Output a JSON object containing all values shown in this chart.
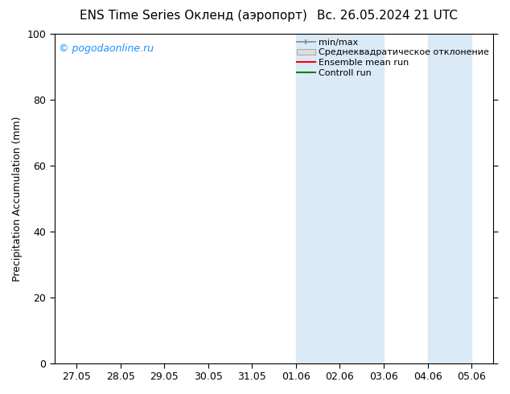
{
  "title_left": "ENS Time Series Окленд (аэропорт)",
  "title_right": "Вс. 26.05.2024 21 UTC",
  "ylabel": "Precipitation Accumulation (mm)",
  "watermark": "© pogodaonline.ru",
  "watermark_color": "#1E90FF",
  "ylim": [
    0,
    100
  ],
  "yticks": [
    0,
    20,
    40,
    60,
    80,
    100
  ],
  "xtick_labels": [
    "27.05",
    "28.05",
    "29.05",
    "30.05",
    "31.05",
    "01.06",
    "02.06",
    "03.06",
    "04.06",
    "05.06"
  ],
  "background_color": "#ffffff",
  "shaded_regions": [
    {
      "x_start_label": "01.06",
      "x_end_label": "02.06"
    },
    {
      "x_start_label": "02.06",
      "x_end_label": "03.06"
    },
    {
      "x_start_label": "04.06",
      "x_end_label": "05.06"
    }
  ],
  "shaded_color": "#daeaf7",
  "legend_entries": [
    {
      "label": "min/max",
      "color": "#aaaaaa",
      "style": "errorbar"
    },
    {
      "label": "Среднеквадратическое отклонение",
      "color": "#cccccc",
      "style": "rect"
    },
    {
      "label": "Ensemble mean run",
      "color": "#ff0000",
      "style": "line"
    },
    {
      "label": "Controll run",
      "color": "#008000",
      "style": "line"
    }
  ]
}
